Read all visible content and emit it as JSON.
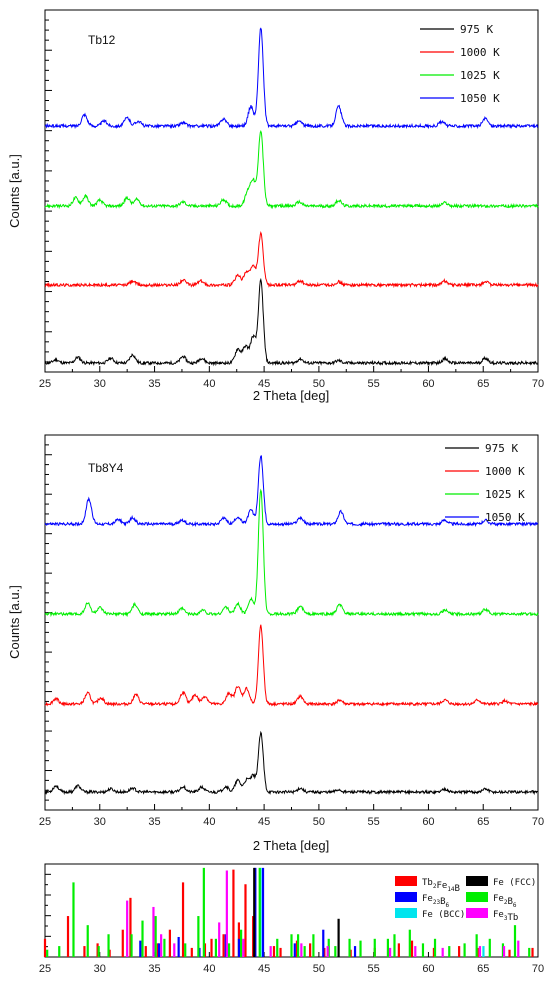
{
  "chart_data": [
    {
      "type": "line",
      "panel_label": "Tb12",
      "xlabel": "2 Theta [deg]",
      "ylabel": "Counts [a.u.]",
      "xlim": [
        25,
        70
      ],
      "x_ticks": [
        "25",
        "30",
        "35",
        "40",
        "45",
        "50",
        "55",
        "60",
        "65",
        "70"
      ],
      "legend_position": "top-right",
      "series": [
        {
          "name": "975  K",
          "color": "#000000",
          "peaks": [
            [
              26,
              0.04
            ],
            [
              28,
              0.07
            ],
            [
              31,
              0.06
            ],
            [
              33,
              0.1
            ],
            [
              37.6,
              0.08
            ],
            [
              39.3,
              0.06
            ],
            [
              42.6,
              0.17
            ],
            [
              43.3,
              0.2
            ],
            [
              44,
              0.32
            ],
            [
              44.7,
              1.0
            ],
            [
              48.3,
              0.05
            ],
            [
              51.8,
              0.03
            ],
            [
              61.5,
              0.05
            ],
            [
              65.2,
              0.06
            ]
          ]
        },
        {
          "name": "1000  K",
          "color": "#ff0000",
          "peaks": [
            [
              33,
              0.05
            ],
            [
              37.6,
              0.06
            ],
            [
              39.2,
              0.05
            ],
            [
              42.6,
              0.12
            ],
            [
              43.4,
              0.15
            ],
            [
              44,
              0.22
            ],
            [
              44.7,
              0.62
            ],
            [
              48.3,
              0.05
            ],
            [
              51.8,
              0.04
            ],
            [
              61.5,
              0.05
            ],
            [
              65.2,
              0.04
            ]
          ]
        },
        {
          "name": "1025  K",
          "color": "#00ee00",
          "peaks": [
            [
              27.8,
              0.1
            ],
            [
              28.7,
              0.12
            ],
            [
              30,
              0.07
            ],
            [
              32.5,
              0.1
            ],
            [
              33.4,
              0.08
            ],
            [
              37.6,
              0.05
            ],
            [
              41.3,
              0.08
            ],
            [
              43.5,
              0.16
            ],
            [
              44,
              0.3
            ],
            [
              44.7,
              0.92
            ],
            [
              48.2,
              0.05
            ],
            [
              51.8,
              0.07
            ],
            [
              61.5,
              0.04
            ]
          ]
        },
        {
          "name": "1050  K",
          "color": "#0000ff",
          "peaks": [
            [
              28.6,
              0.14
            ],
            [
              30.4,
              0.06
            ],
            [
              32.5,
              0.1
            ],
            [
              33.5,
              0.06
            ],
            [
              37.6,
              0.04
            ],
            [
              41.3,
              0.09
            ],
            [
              43.8,
              0.24
            ],
            [
              44.7,
              1.2
            ],
            [
              48.2,
              0.06
            ],
            [
              51.8,
              0.24
            ],
            [
              61.2,
              0.05
            ],
            [
              65.2,
              0.09
            ]
          ]
        }
      ]
    },
    {
      "type": "line",
      "panel_label": "Tb8Y4",
      "xlabel": "2 Theta [deg]",
      "ylabel": "Counts [a.u.]",
      "xlim": [
        25,
        70
      ],
      "x_ticks": [
        "25",
        "30",
        "35",
        "40",
        "45",
        "50",
        "55",
        "60",
        "65",
        "70"
      ],
      "legend_position": "top-right",
      "series": [
        {
          "name": "975  K",
          "color": "#000000",
          "peaks": [
            [
              26,
              0.08
            ],
            [
              28,
              0.08
            ],
            [
              31,
              0.04
            ],
            [
              33,
              0.05
            ],
            [
              37.6,
              0.07
            ],
            [
              39.3,
              0.06
            ],
            [
              41.5,
              0.07
            ],
            [
              42.6,
              0.15
            ],
            [
              43.4,
              0.15
            ],
            [
              44,
              0.2
            ],
            [
              44.7,
              0.75
            ],
            [
              48.3,
              0.05
            ],
            [
              51.8,
              0.03
            ],
            [
              61.5,
              0.04
            ],
            [
              65.2,
              0.04
            ]
          ]
        },
        {
          "name": "1000  K",
          "color": "#ff0000",
          "peaks": [
            [
              26,
              0.07
            ],
            [
              28.9,
              0.14
            ],
            [
              30.1,
              0.08
            ],
            [
              33.3,
              0.12
            ],
            [
              37.6,
              0.15
            ],
            [
              38.7,
              0.12
            ],
            [
              39.6,
              0.1
            ],
            [
              41.8,
              0.14
            ],
            [
              42.6,
              0.23
            ],
            [
              43.4,
              0.2
            ],
            [
              44.7,
              1.0
            ],
            [
              48.3,
              0.1
            ],
            [
              51.9,
              0.05
            ],
            [
              61.5,
              0.05
            ],
            [
              64.5,
              0.05
            ],
            [
              67,
              0.04
            ]
          ]
        },
        {
          "name": "1025  K",
          "color": "#00ee00",
          "peaks": [
            [
              28.9,
              0.14
            ],
            [
              30,
              0.08
            ],
            [
              33.2,
              0.12
            ],
            [
              37.5,
              0.07
            ],
            [
              39.4,
              0.05
            ],
            [
              41.5,
              0.09
            ],
            [
              42.6,
              0.13
            ],
            [
              43.8,
              0.2
            ],
            [
              44.7,
              1.6
            ],
            [
              48.3,
              0.1
            ],
            [
              51.9,
              0.12
            ],
            [
              61.5,
              0.05
            ],
            [
              65.2,
              0.06
            ]
          ]
        },
        {
          "name": "1050  K",
          "color": "#0000ff",
          "peaks": [
            [
              29,
              0.32
            ],
            [
              31.7,
              0.06
            ],
            [
              33,
              0.08
            ],
            [
              37.5,
              0.05
            ],
            [
              41.3,
              0.08
            ],
            [
              42.6,
              0.09
            ],
            [
              43.8,
              0.18
            ],
            [
              44.7,
              0.88
            ],
            [
              48.3,
              0.08
            ],
            [
              52,
              0.16
            ],
            [
              61.5,
              0.05
            ],
            [
              65.2,
              0.05
            ]
          ]
        }
      ]
    },
    {
      "type": "bar",
      "xlim": [
        25,
        70
      ],
      "x_ticks": [
        "25",
        "30",
        "35",
        "40",
        "45",
        "50",
        "55",
        "60",
        "65",
        "70"
      ],
      "legend_position": "top-right",
      "phases": [
        {
          "name": "Tb₂Fe₁₄B",
          "label_main": "Tb",
          "label_sub1": "2",
          "label_mid": "Fe",
          "label_sub2": "14",
          "label_end": "B",
          "color": "#ff0000",
          "lines": [
            [
              25,
              0.2
            ],
            [
              27.1,
              0.45
            ],
            [
              28.6,
              0.12
            ],
            [
              29.8,
              0.15
            ],
            [
              30.9,
              0.08
            ],
            [
              32.1,
              0.3
            ],
            [
              32.8,
              0.65
            ],
            [
              34.2,
              0.12
            ],
            [
              35.3,
              0.15
            ],
            [
              36.4,
              0.3
            ],
            [
              37.6,
              0.82
            ],
            [
              38.4,
              0.1
            ],
            [
              39.6,
              0.15
            ],
            [
              40.2,
              0.2
            ],
            [
              41.3,
              0.25
            ],
            [
              42.2,
              0.96
            ],
            [
              42.7,
              0.38
            ],
            [
              43.3,
              0.8
            ],
            [
              44,
              0.45
            ],
            [
              45.9,
              0.12
            ],
            [
              46.5,
              0.1
            ],
            [
              48,
              0.18
            ],
            [
              49.2,
              0.15
            ],
            [
              50.5,
              0.1
            ],
            [
              52.9,
              0.08
            ],
            [
              55.1,
              0.1
            ],
            [
              57.3,
              0.15
            ],
            [
              58.5,
              0.18
            ],
            [
              60.5,
              0.1
            ],
            [
              62.8,
              0.12
            ],
            [
              64.5,
              0.1
            ],
            [
              67.4,
              0.08
            ],
            [
              69.5,
              0.1
            ]
          ]
        },
        {
          "name": "Fe₂₃B₆",
          "label_main": "Fe",
          "label_sub1": "23",
          "label_mid": "B",
          "label_sub2": "6",
          "label_end": "",
          "color": "#0000ff",
          "lines": [
            [
              33.7,
              0.18
            ],
            [
              35.4,
              0.15
            ],
            [
              37.2,
              0.22
            ],
            [
              39.1,
              0.1
            ],
            [
              41.5,
              0.25
            ],
            [
              42.7,
              0.2
            ],
            [
              44.2,
              0.98
            ],
            [
              44.9,
              0.98
            ],
            [
              47.8,
              0.15
            ],
            [
              50.4,
              0.3
            ],
            [
              53.3,
              0.12
            ]
          ]
        },
        {
          "name": "Fe (BCC)",
          "label_main": "Fe (BCC)",
          "label_sub1": "",
          "label_mid": "",
          "label_sub2": "",
          "label_end": "",
          "color": "#00e5ee",
          "lines": [
            [
              44.67,
              0.98
            ],
            [
              65.02,
              0.12
            ]
          ]
        },
        {
          "name": "Fe (FCC)",
          "label_main": "Fe (FCC)",
          "label_sub1": "",
          "label_mid": "",
          "label_sub2": "",
          "label_end": "",
          "color": "#000000",
          "lines": [
            [
              44.1,
              0.98
            ],
            [
              51.8,
              0.42
            ]
          ]
        },
        {
          "name": "Fe₂B₆",
          "label_main": "Fe",
          "label_sub1": "2",
          "label_mid": "B",
          "label_sub2": "6",
          "label_end": "",
          "color": "#00ee00",
          "lines": [
            [
              25.2,
              0.08
            ],
            [
              26.3,
              0.12
            ],
            [
              27.6,
              0.82
            ],
            [
              28.9,
              0.35
            ],
            [
              29.9,
              0.12
            ],
            [
              30.8,
              0.25
            ],
            [
              32.9,
              0.25
            ],
            [
              33.9,
              0.4
            ],
            [
              35.1,
              0.45
            ],
            [
              35.9,
              0.2
            ],
            [
              37.8,
              0.15
            ],
            [
              39.0,
              0.45
            ],
            [
              39.5,
              0.98
            ],
            [
              40.6,
              0.2
            ],
            [
              41.8,
              0.15
            ],
            [
              42.9,
              0.3
            ],
            [
              44.6,
              0.98
            ],
            [
              46.2,
              0.2
            ],
            [
              47.5,
              0.25
            ],
            [
              48.1,
              0.25
            ],
            [
              48.7,
              0.12
            ],
            [
              49.5,
              0.25
            ],
            [
              50.9,
              0.2
            ],
            [
              51.5,
              0.12
            ],
            [
              52.8,
              0.2
            ],
            [
              53.8,
              0.18
            ],
            [
              55.1,
              0.2
            ],
            [
              56.3,
              0.2
            ],
            [
              56.9,
              0.25
            ],
            [
              58.3,
              0.3
            ],
            [
              59.5,
              0.15
            ],
            [
              60.6,
              0.2
            ],
            [
              61.9,
              0.12
            ],
            [
              63.3,
              0.15
            ],
            [
              64.4,
              0.25
            ],
            [
              65.6,
              0.2
            ],
            [
              66.8,
              0.15
            ],
            [
              67.9,
              0.35
            ],
            [
              69.2,
              0.1
            ]
          ]
        },
        {
          "name": "Fe₃Tb",
          "label_main": "Fe",
          "label_sub1": "3",
          "label_mid": "Tb",
          "label_sub2": "",
          "label_end": "",
          "color": "#ff00ff",
          "lines": [
            [
              32.5,
              0.62
            ],
            [
              34.9,
              0.55
            ],
            [
              35.6,
              0.25
            ],
            [
              36.8,
              0.15
            ],
            [
              40.9,
              0.38
            ],
            [
              41.6,
              0.95
            ],
            [
              43.1,
              0.2
            ],
            [
              45.6,
              0.12
            ],
            [
              48.4,
              0.15
            ],
            [
              50.8,
              0.12
            ],
            [
              56.5,
              0.1
            ],
            [
              58.8,
              0.12
            ],
            [
              61.3,
              0.1
            ],
            [
              64.7,
              0.12
            ],
            [
              66.9,
              0.12
            ],
            [
              68.2,
              0.18
            ]
          ]
        }
      ]
    }
  ]
}
